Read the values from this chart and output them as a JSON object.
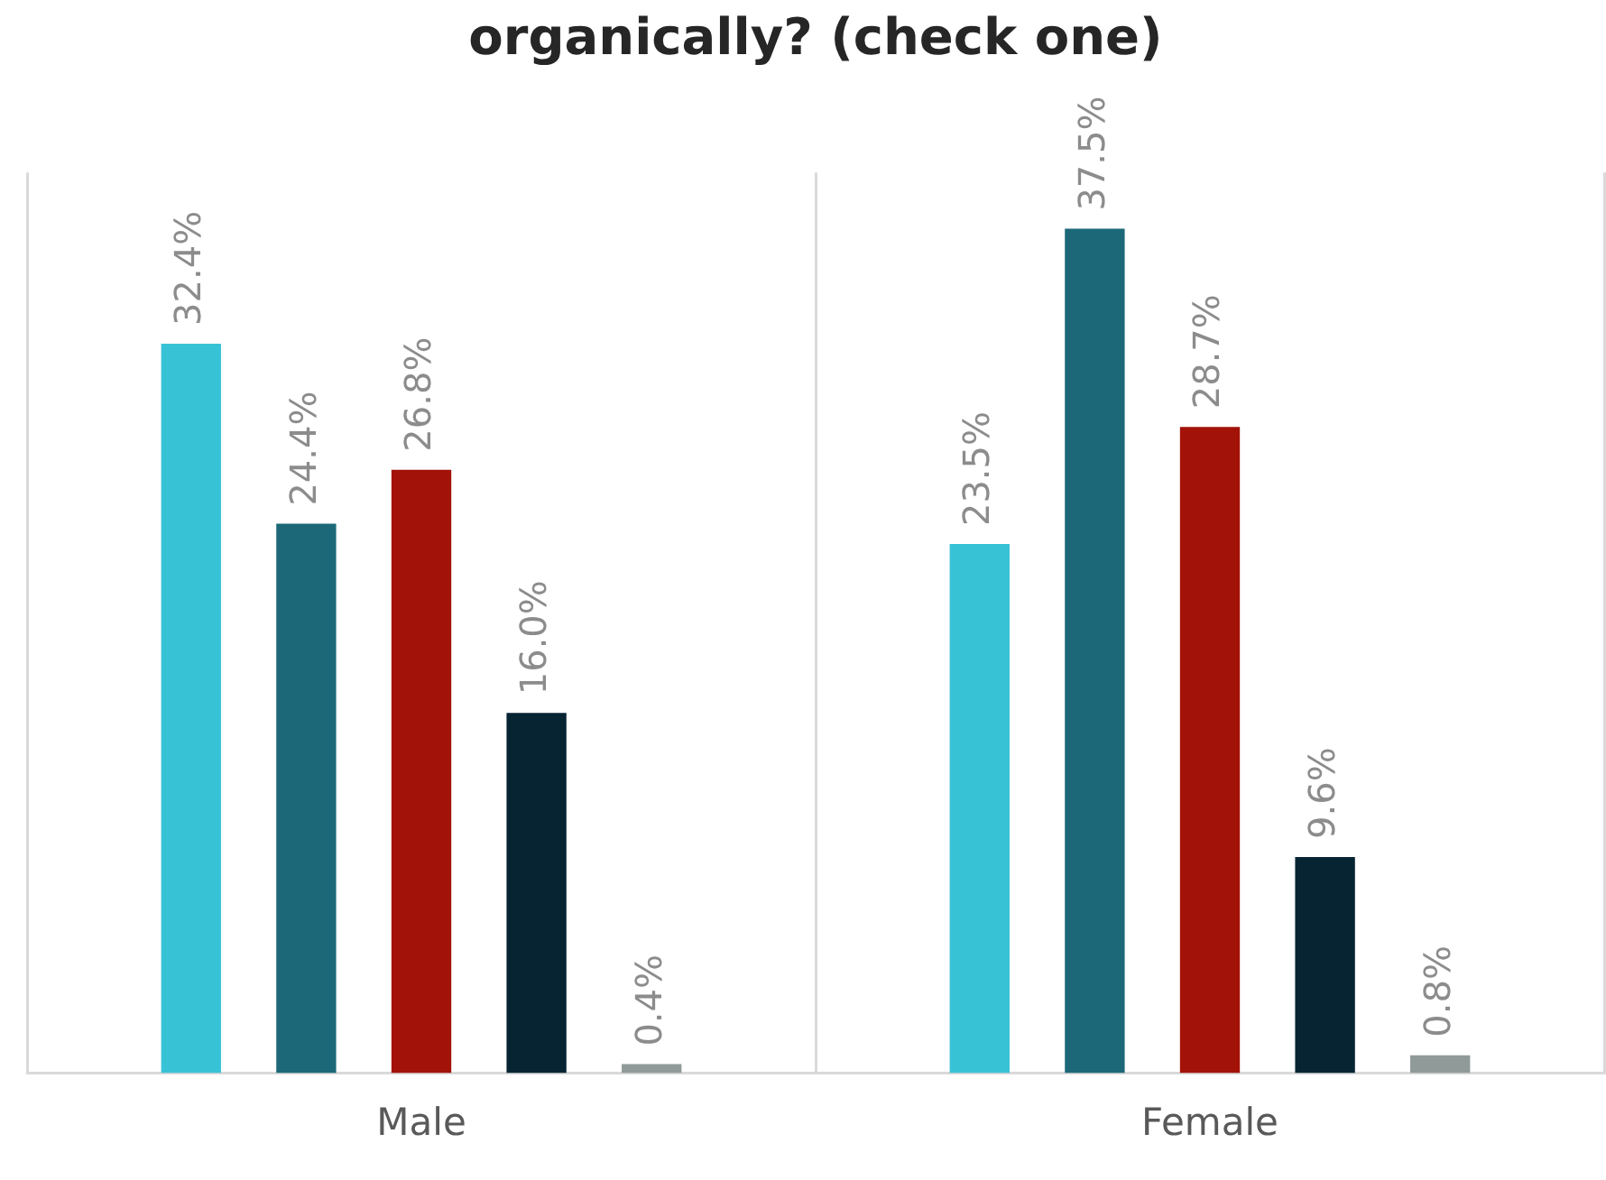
{
  "chart_data": {
    "type": "bar",
    "title": "organically? (check one)",
    "categories": [
      "Male",
      "Female"
    ],
    "series": [
      {
        "color": "#38c2d6",
        "values": [
          32.4,
          23.5
        ],
        "value_labels": [
          "32.4%",
          "23.5%"
        ]
      },
      {
        "color": "#1c6878",
        "values": [
          24.4,
          37.5
        ],
        "value_labels": [
          "24.4%",
          "37.5%"
        ]
      },
      {
        "color": "#a31208",
        "values": [
          26.8,
          28.7
        ],
        "value_labels": [
          "26.8%",
          "28.7%"
        ]
      },
      {
        "color": "#072433",
        "values": [
          16,
          9.6
        ],
        "value_labels": [
          "16.0%",
          "9.6%"
        ]
      },
      {
        "color": "#909a99",
        "values": [
          0.4,
          0.8
        ],
        "value_labels": [
          "0.4%",
          "0.8%"
        ]
      }
    ],
    "grid": "x",
    "tick_labels": "x"
  }
}
